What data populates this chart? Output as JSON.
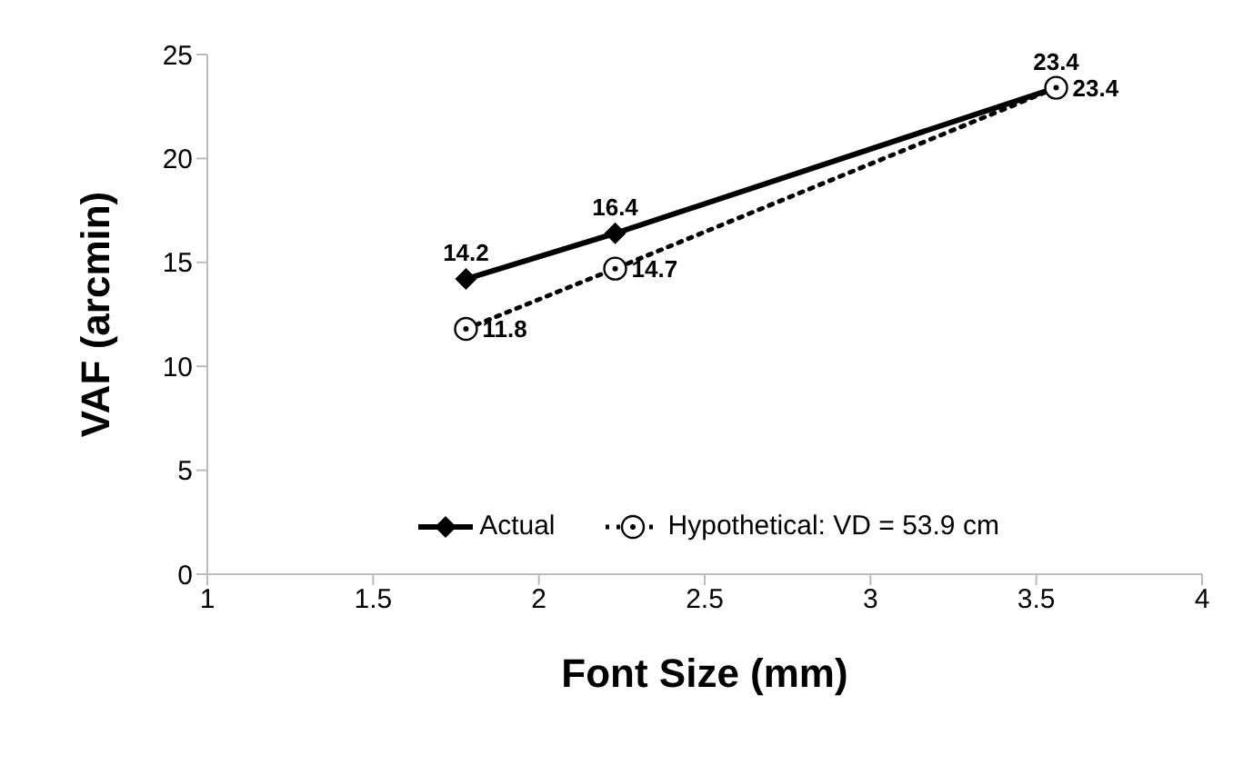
{
  "chart_data": {
    "type": "line",
    "xlabel": "Font Size (mm)",
    "ylabel": "VAF (arcmin)",
    "xlim": [
      1,
      4
    ],
    "xticks": [
      1,
      1.5,
      2,
      2.5,
      3,
      3.5,
      4
    ],
    "ylim": [
      0,
      25
    ],
    "yticks": [
      0,
      5,
      10,
      15,
      20,
      25
    ],
    "grid": false,
    "legend": "bottom",
    "data_labels": true,
    "series": [
      {
        "name": "Actual",
        "color": "#000000",
        "marker": "diamond",
        "line_style": "solid",
        "x": [
          1.78,
          2.23,
          3.56
        ],
        "values": [
          14.2,
          16.4,
          23.4
        ]
      },
      {
        "name": "Hypothetical: VD = 53.9 cm",
        "color": "#000000",
        "marker": "circle",
        "line_style": "dotted",
        "x": [
          1.78,
          2.23,
          3.56
        ],
        "values": [
          11.8,
          14.7,
          23.4
        ]
      }
    ]
  }
}
